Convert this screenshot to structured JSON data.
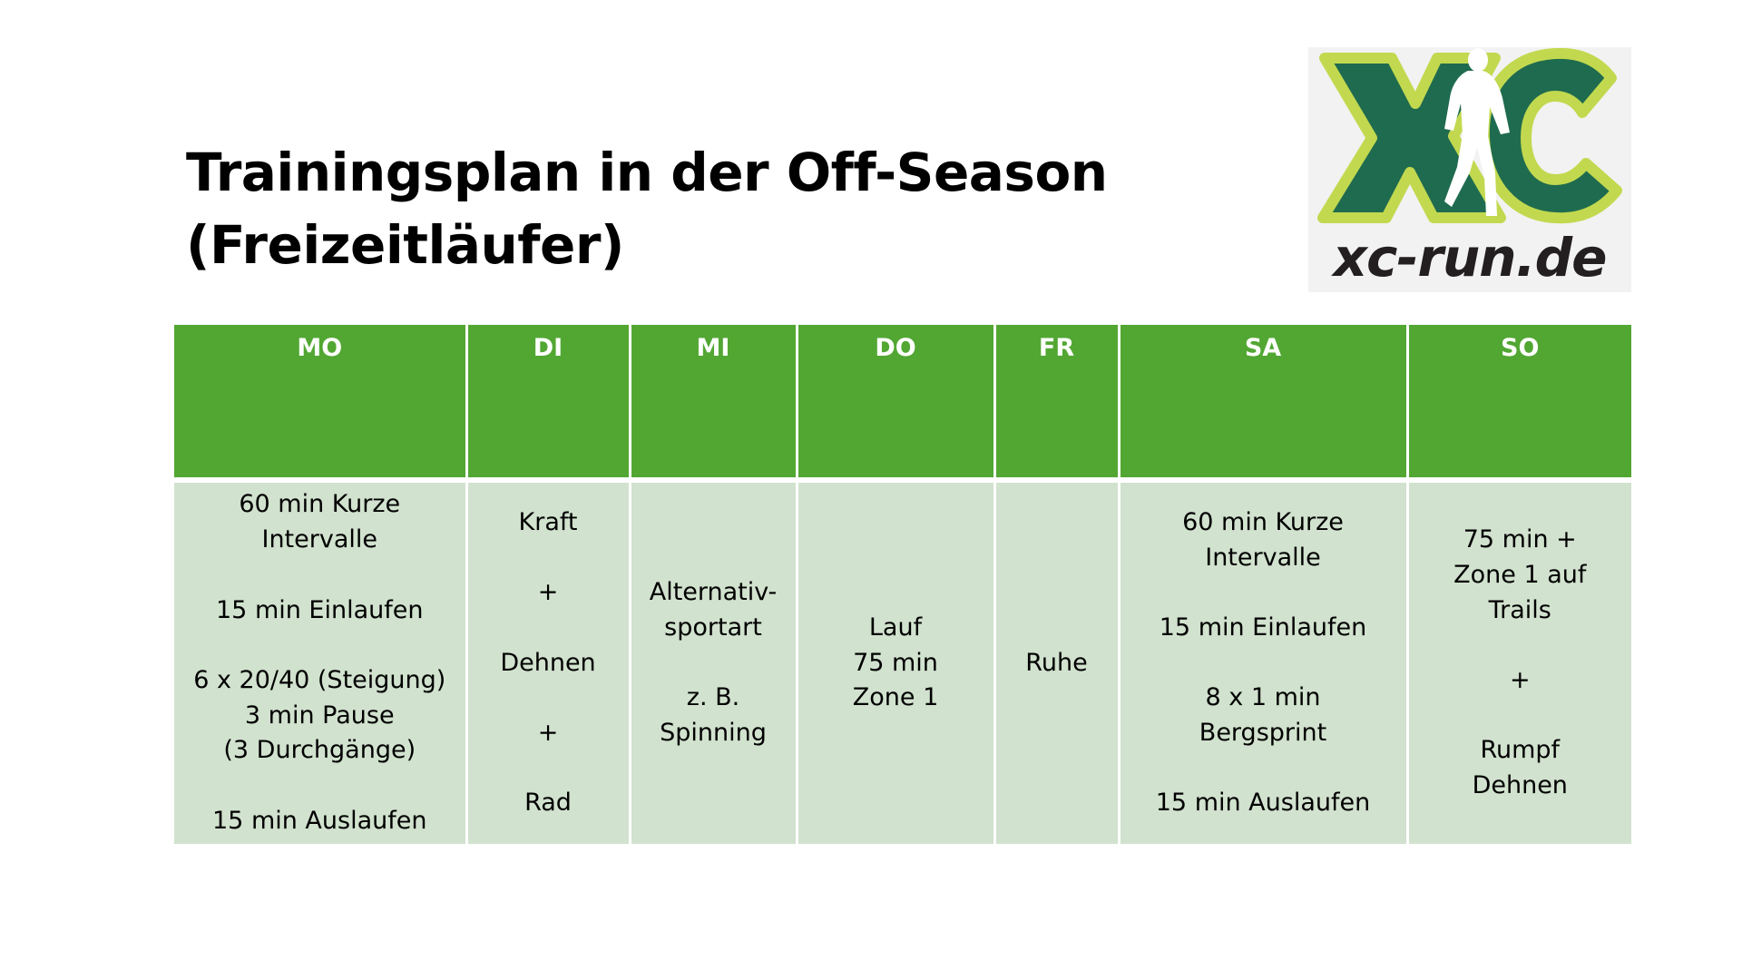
{
  "title": {
    "line1": "Trainingsplan in der Off-Season",
    "line2": "(Freizeitläufer)"
  },
  "logo": {
    "mark": "XC",
    "text": "xc-run.de",
    "colors": {
      "lime": "#c2d94f",
      "green": "#1f6b4f",
      "runner": "#ffffff"
    }
  },
  "table": {
    "headers": [
      "MO",
      "DI",
      "MI",
      "DO",
      "FR",
      "SA",
      "SO"
    ],
    "cells": [
      "60 min Kurze\nIntervalle\n\n15 min Einlaufen\n\n6 x 20/40 (Steigung)\n3 min Pause\n(3 Durchgänge)\n\n15 min Auslaufen",
      "Kraft\n\n+\n\nDehnen\n\n+\n\nRad",
      "Alternativ-\nsportart\n\nz. B.\nSpinning",
      "Lauf\n75 min\nZone 1",
      "Ruhe",
      "60 min Kurze\nIntervalle\n\n15 min Einlaufen\n\n8 x 1 min\nBergsprint\n\n15 min Auslaufen",
      "75 min +\nZone 1 auf\nTrails\n\n+\n\nRumpf\nDehnen"
    ],
    "colors": {
      "header": "#52a733",
      "body": "#d1e2ce"
    }
  }
}
